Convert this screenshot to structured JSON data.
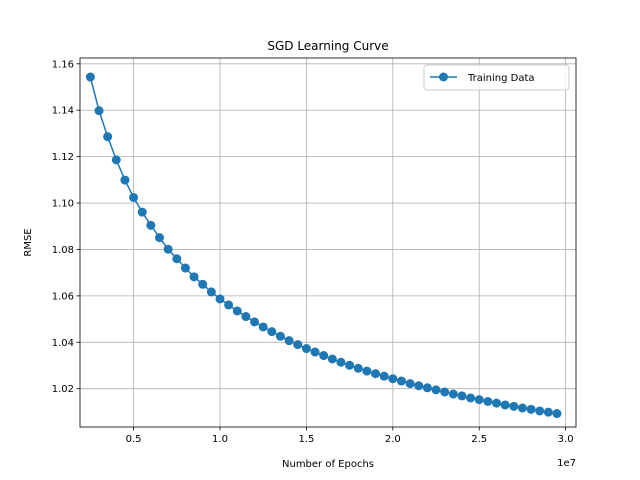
{
  "chart_data": {
    "type": "line",
    "title": "SGD Learning Curve",
    "xlabel": "Number of Epochs",
    "ylabel": "RMSE",
    "x_offset_label": "1e7",
    "xlim": [
      1900000,
      30600000
    ],
    "ylim": [
      1.0035,
      1.1625
    ],
    "xticks": [
      5000000,
      10000000,
      15000000,
      20000000,
      25000000,
      30000000
    ],
    "xtick_labels": [
      "0.5",
      "1.0",
      "1.5",
      "2.0",
      "2.5",
      "3.0"
    ],
    "yticks": [
      1.02,
      1.04,
      1.06,
      1.08,
      1.1,
      1.12,
      1.14,
      1.16
    ],
    "ytick_labels": [
      "1.02",
      "1.04",
      "1.06",
      "1.08",
      "1.10",
      "1.12",
      "1.14",
      "1.16"
    ],
    "grid": true,
    "legend_position": "top-right",
    "series": [
      {
        "name": "Training Data",
        "color": "#1f77b4",
        "marker": "circle",
        "x": [
          2500000,
          3000000,
          3500000,
          4000000,
          4500000,
          5000000,
          5500000,
          6000000,
          6500000,
          7000000,
          7500000,
          8000000,
          8500000,
          9000000,
          9500000,
          10000000,
          10500000,
          11000000,
          11500000,
          12000000,
          12500000,
          13000000,
          13500000,
          14000000,
          14500000,
          15000000,
          15500000,
          16000000,
          16500000,
          17000000,
          17500000,
          18000000,
          18500000,
          19000000,
          19500000,
          20000000,
          20500000,
          21000000,
          21500000,
          22000000,
          22500000,
          23000000,
          23500000,
          24000000,
          24500000,
          25000000,
          25500000,
          26000000,
          26500000,
          27000000,
          27500000,
          28000000,
          28500000,
          29000000,
          29500000
        ],
        "y": [
          1.1543,
          1.1398,
          1.1286,
          1.1186,
          1.1099,
          1.1024,
          1.0961,
          1.0904,
          1.0851,
          1.0801,
          1.076,
          1.072,
          1.0682,
          1.065,
          1.0617,
          1.0587,
          1.0561,
          1.0535,
          1.0511,
          1.0488,
          1.0466,
          1.0446,
          1.0426,
          1.0407,
          1.039,
          1.0373,
          1.0358,
          1.0343,
          1.0328,
          1.0314,
          1.0301,
          1.0288,
          1.0276,
          1.0265,
          1.0254,
          1.0243,
          1.0233,
          1.0222,
          1.0213,
          1.0204,
          1.0195,
          1.0186,
          1.0177,
          1.0169,
          1.016,
          1.0153,
          1.0145,
          1.0138,
          1.013,
          1.0124,
          1.0117,
          1.0111,
          1.0104,
          1.0099,
          1.0093
        ]
      }
    ]
  }
}
